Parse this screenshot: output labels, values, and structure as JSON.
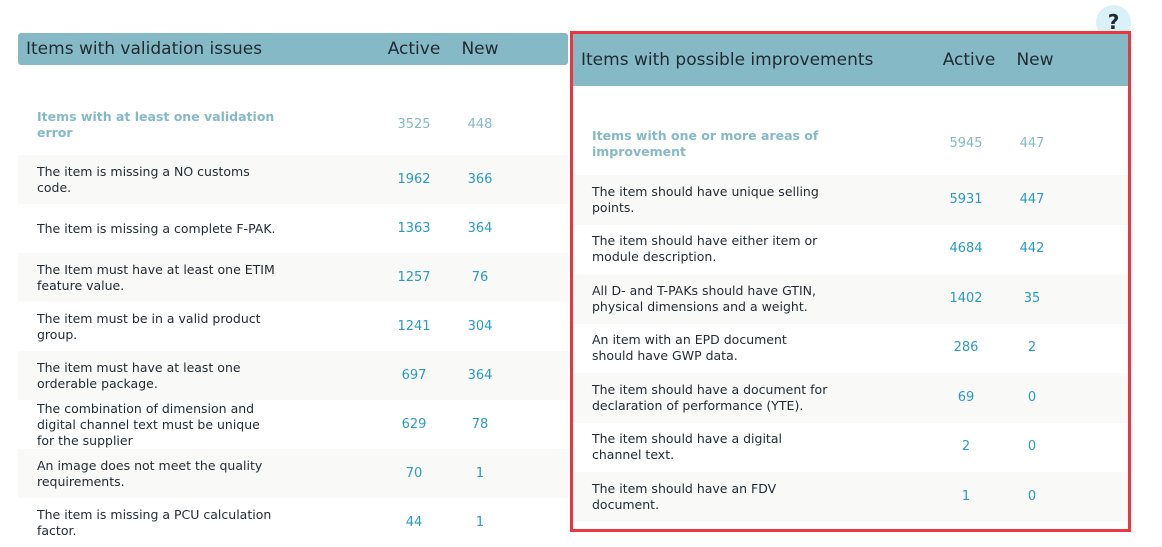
{
  "help_label": "?",
  "validation": {
    "title": "Items with validation issues",
    "col_active": "Active",
    "col_new": "New",
    "summary": {
      "label": "Items with at least one validation error",
      "active": "3525",
      "new": "448"
    },
    "rows": [
      {
        "label": "The item is missing a NO customs code.",
        "active": "1962",
        "new": "366"
      },
      {
        "label": "The item is missing a complete F-PAK.",
        "active": "1363",
        "new": "364"
      },
      {
        "label": "The Item must have at least one ETIM feature value.",
        "active": "1257",
        "new": "76"
      },
      {
        "label": "The item must be in a valid product group.",
        "active": "1241",
        "new": "304"
      },
      {
        "label": "The item must have at least one orderable package.",
        "active": "697",
        "new": "364"
      },
      {
        "label": "The combination of dimension and digital channel text must be unique for the supplier",
        "active": "629",
        "new": "78"
      },
      {
        "label": "An image does not meet the quality requirements.",
        "active": "70",
        "new": "1"
      },
      {
        "label": "The item is missing a PCU calculation factor.",
        "active": "44",
        "new": "1"
      }
    ]
  },
  "improvements": {
    "title": "Items with possible improvements",
    "col_active": "Active",
    "col_new": "New",
    "summary": {
      "label": "Items with one or more areas of improvement",
      "active": "5945",
      "new": "447"
    },
    "rows": [
      {
        "label": "The item should have unique selling points.",
        "active": "5931",
        "new": "447"
      },
      {
        "label": "The item should have either item or module description.",
        "active": "4684",
        "new": "442"
      },
      {
        "label": "All D- and T-PAKs should have GTIN, physical dimensions and a weight.",
        "active": "1402",
        "new": "35"
      },
      {
        "label": "An item with an EPD document should have GWP data.",
        "active": "286",
        "new": "2"
      },
      {
        "label": "The item should have a document for declaration of performance (YTE).",
        "active": "69",
        "new": "0"
      },
      {
        "label": "The item should have a digital channel text.",
        "active": "2",
        "new": "0"
      },
      {
        "label": "The item should have an FDV document.",
        "active": "1",
        "new": "0"
      }
    ]
  },
  "colors": {
    "header": "#86b9c6",
    "number": "#2a9bc0",
    "highlight_border": "#e8383f"
  }
}
